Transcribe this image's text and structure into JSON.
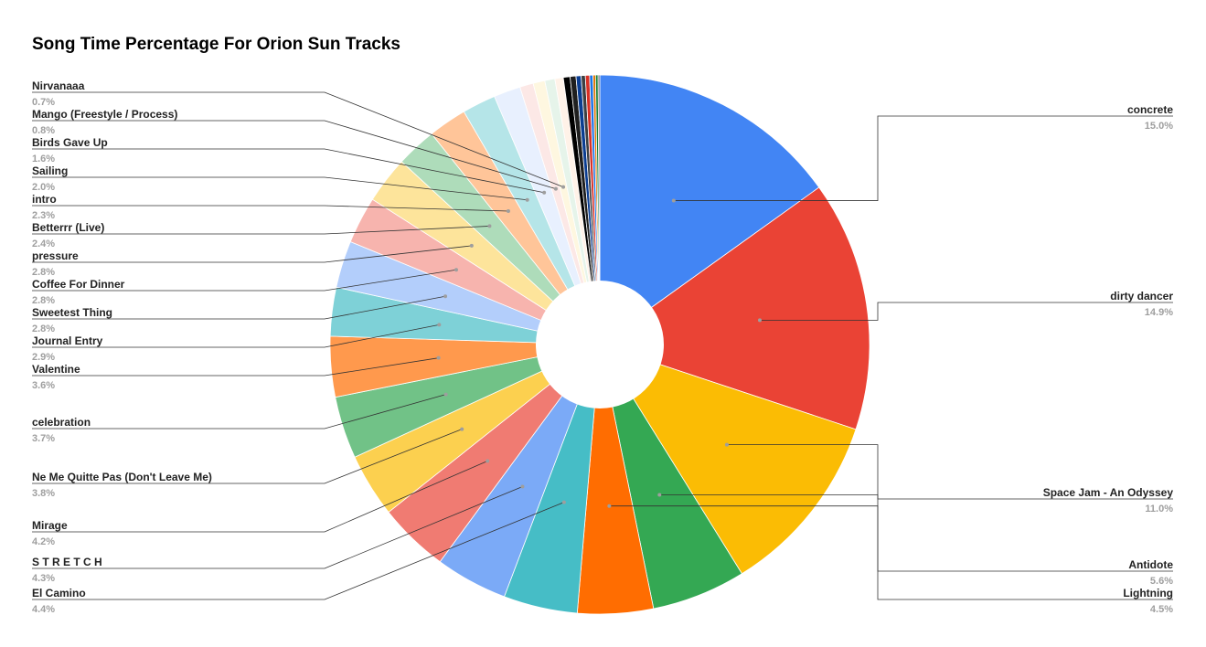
{
  "chart_data": {
    "type": "pie",
    "donut": true,
    "title": "Song Time Percentage For Orion Sun Tracks",
    "legend": "none",
    "slices": [
      {
        "label": "concrete",
        "value": 15.0,
        "display": "15.0%",
        "color": "#4285f4"
      },
      {
        "label": "dirty dancer",
        "value": 14.9,
        "display": "14.9%",
        "color": "#ea4335"
      },
      {
        "label": "Space Jam - An Odyssey",
        "value": 11.0,
        "display": "11.0%",
        "color": "#fbbc04"
      },
      {
        "label": "Antidote",
        "value": 5.6,
        "display": "5.6%",
        "color": "#34a853"
      },
      {
        "label": "Lightning",
        "value": 4.5,
        "display": "4.5%",
        "color": "#ff6d01"
      },
      {
        "label": "El Camino",
        "value": 4.4,
        "display": "4.4%",
        "color": "#46bdc6"
      },
      {
        "label": "S T R E T C H",
        "value": 4.3,
        "display": "4.3%",
        "color": "#7baaf7"
      },
      {
        "label": "Mirage",
        "value": 4.2,
        "display": "4.2%",
        "color": "#f07b72"
      },
      {
        "label": "Ne Me Quitte Pas (Don't Leave Me)",
        "value": 3.8,
        "display": "3.8%",
        "color": "#fcd04f"
      },
      {
        "label": "celebration",
        "value": 3.7,
        "display": "3.7%",
        "color": "#71c287"
      },
      {
        "label": "Valentine",
        "value": 3.6,
        "display": "3.6%",
        "color": "#ff994d"
      },
      {
        "label": "Journal Entry",
        "value": 2.9,
        "display": "2.9%",
        "color": "#7ed1d7"
      },
      {
        "label": "Sweetest Thing",
        "value": 2.8,
        "display": "2.8%",
        "color": "#b3cefb"
      },
      {
        "label": "Coffee For Dinner",
        "value": 2.8,
        "display": "2.8%",
        "color": "#f7b4ae"
      },
      {
        "label": "pressure",
        "value": 2.8,
        "display": "2.8%",
        "color": "#fde49b"
      },
      {
        "label": "Betterrr (Live)",
        "value": 2.4,
        "display": "2.4%",
        "color": "#aedcba"
      },
      {
        "label": "intro",
        "value": 2.3,
        "display": "2.3%",
        "color": "#ffc599"
      },
      {
        "label": "Sailing",
        "value": 2.0,
        "display": "2.0%",
        "color": "#b5e5e8"
      },
      {
        "label": "Birds Gave Up",
        "value": 1.6,
        "display": "1.6%",
        "color": "#e8f0fe"
      },
      {
        "label": "Mango (Freestyle / Process)",
        "value": 0.8,
        "display": "0.8%",
        "color": "#fce8e6"
      },
      {
        "label": "Nirvanaaa",
        "value": 0.7,
        "display": "0.7%",
        "color": "#fef7e0"
      }
    ],
    "unlabeled_slices": [
      {
        "value": 0.6,
        "color": "#e6f4ea"
      },
      {
        "value": 0.5,
        "color": "#fff2e8"
      },
      {
        "value": 0.4,
        "color": "#000000"
      },
      {
        "value": 0.35,
        "color": "#1f1f1f"
      },
      {
        "value": 0.3,
        "color": "#0b3d91"
      },
      {
        "value": 0.25,
        "color": "#3c4043"
      },
      {
        "value": 0.25,
        "color": "#d93025"
      },
      {
        "value": 0.2,
        "color": "#1a73e8"
      },
      {
        "value": 0.15,
        "color": "#e37400"
      },
      {
        "value": 0.15,
        "color": "#188038"
      },
      {
        "value": 0.1,
        "color": "#5f6368"
      }
    ]
  }
}
